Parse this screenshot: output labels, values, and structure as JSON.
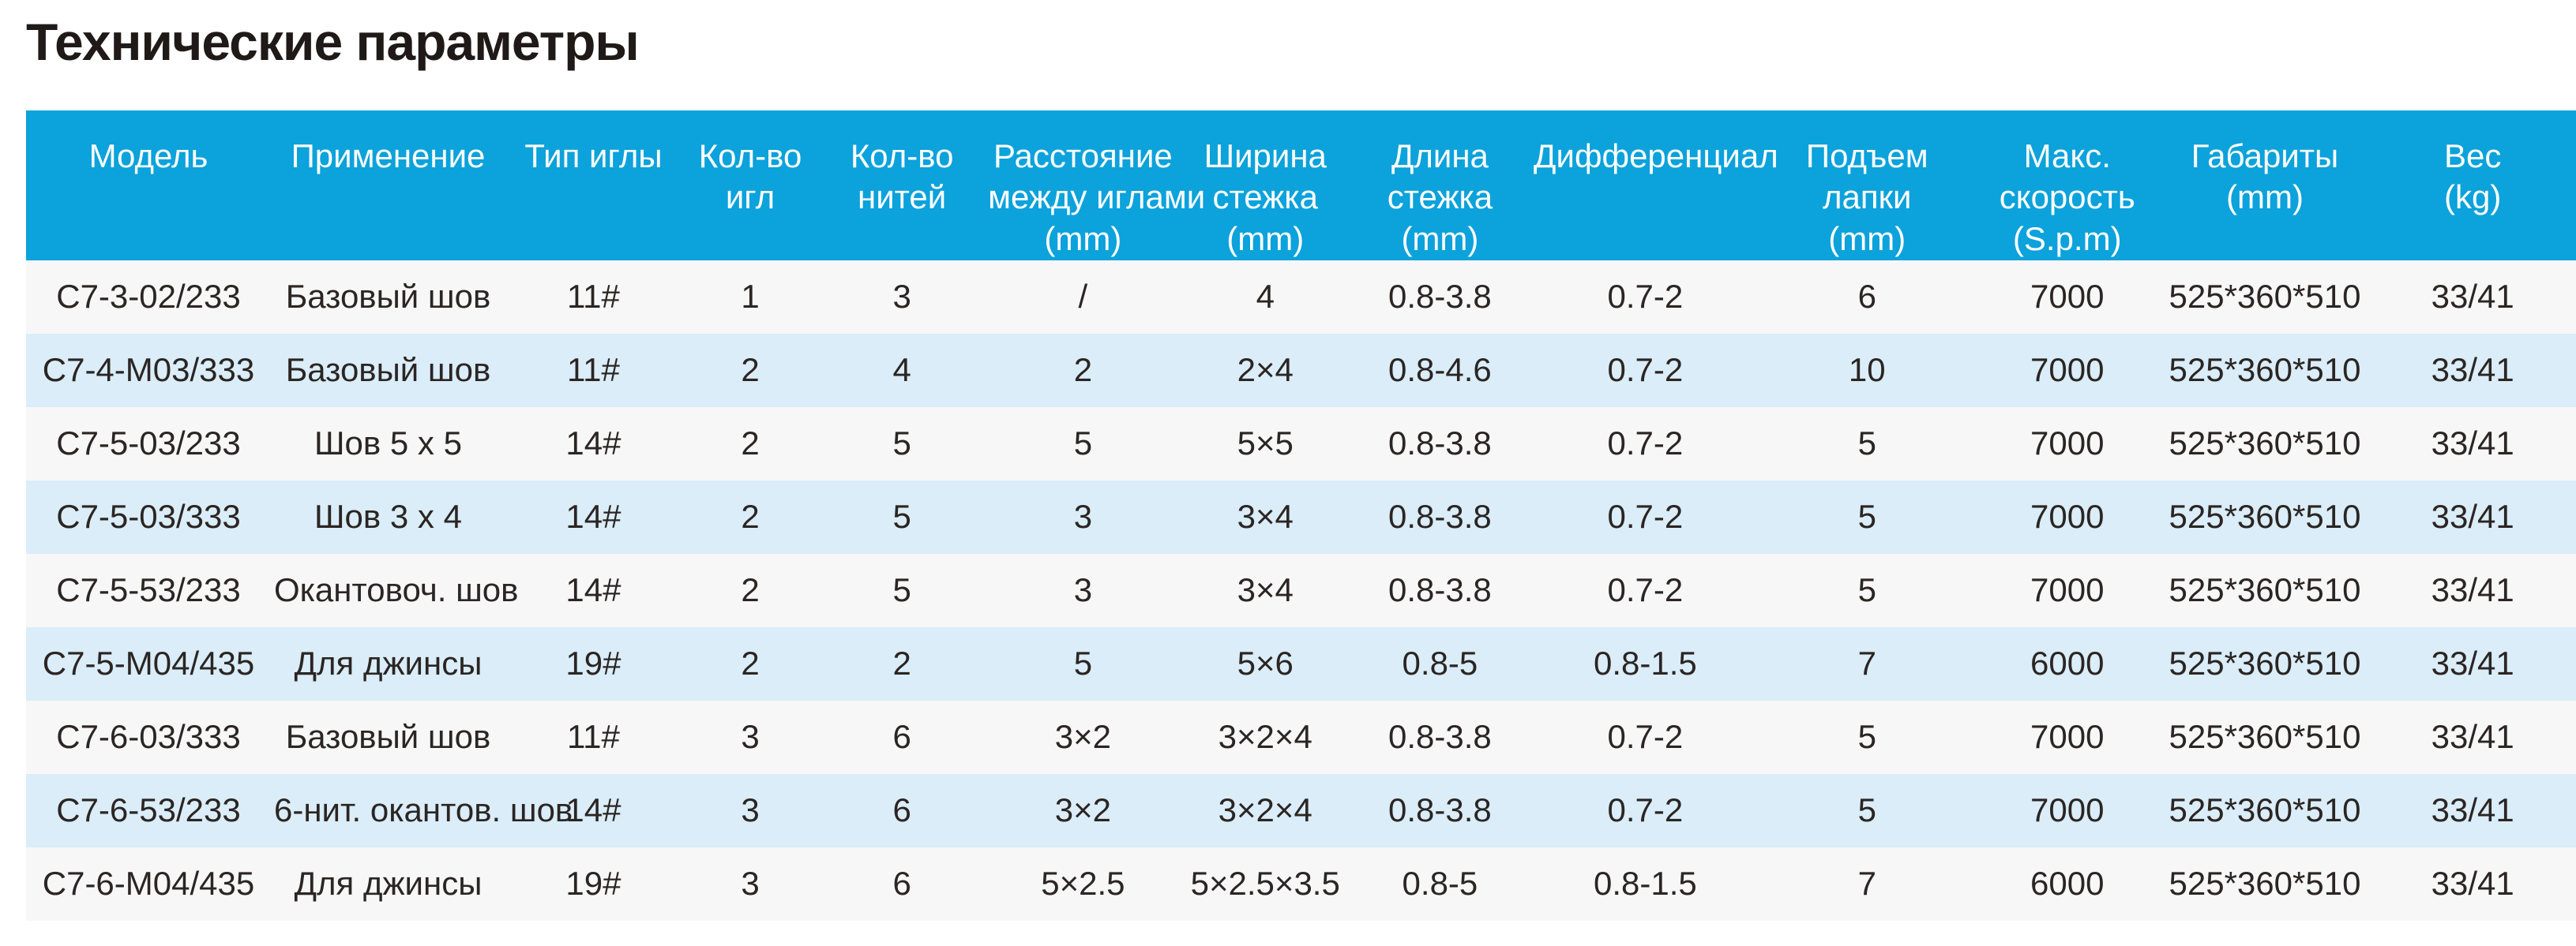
{
  "page": {
    "title": "Технические параметры"
  },
  "colors": {
    "header_background": "#0ca2db",
    "header_text": "#ffffff",
    "row_light": "#f7f7f8",
    "row_blue": "#daedf8",
    "body_text": "#2b2523",
    "title_text": "#1f1a17"
  },
  "table": {
    "columns": [
      {
        "id": "model",
        "label": "Модель"
      },
      {
        "id": "application",
        "label": "Применение"
      },
      {
        "id": "needle_type",
        "label": "Тип иглы"
      },
      {
        "id": "needles",
        "label": "Кол-во\nигл"
      },
      {
        "id": "threads",
        "label": "Кол-во\nнитей"
      },
      {
        "id": "needle_gauge",
        "label": "Расстояние\nмежду иглами\n(mm)"
      },
      {
        "id": "stitch_width",
        "label": "Ширина\nстежка\n(mm)"
      },
      {
        "id": "stitch_length",
        "label": "Длина\nстежка\n(mm)"
      },
      {
        "id": "differential",
        "label": "Дифференциал"
      },
      {
        "id": "foot_lift",
        "label": "Подъем\nлапки\n(mm)"
      },
      {
        "id": "max_speed",
        "label": "Макс.\nскорость\n(S.p.m)"
      },
      {
        "id": "dimensions",
        "label": "Габариты\n(mm)"
      },
      {
        "id": "weight",
        "label": "Вес\n(kg)"
      }
    ],
    "rows": [
      [
        "C7-3-02/233",
        "Базовый шов",
        "11#",
        "1",
        "3",
        "/",
        "4",
        "0.8-3.8",
        "0.7-2",
        "6",
        "7000",
        "525*360*510",
        "33/41"
      ],
      [
        "C7-4-M03/333",
        "Базовый шов",
        "11#",
        "2",
        "4",
        "2",
        "2×4",
        "0.8-4.6",
        "0.7-2",
        "10",
        "7000",
        "525*360*510",
        "33/41"
      ],
      [
        "C7-5-03/233",
        "Шов 5 x 5",
        "14#",
        "2",
        "5",
        "5",
        "5×5",
        "0.8-3.8",
        "0.7-2",
        "5",
        "7000",
        "525*360*510",
        "33/41"
      ],
      [
        "C7-5-03/333",
        "Шов 3 x 4",
        "14#",
        "2",
        "5",
        "3",
        "3×4",
        "0.8-3.8",
        "0.7-2",
        "5",
        "7000",
        "525*360*510",
        "33/41"
      ],
      [
        "C7-5-53/233",
        "Окантовоч. шов",
        "14#",
        "2",
        "5",
        "3",
        "3×4",
        "0.8-3.8",
        "0.7-2",
        "5",
        "7000",
        "525*360*510",
        "33/41"
      ],
      [
        "C7-5-M04/435",
        "Для джинсы",
        "19#",
        "2",
        "2",
        "5",
        "5×6",
        "0.8-5",
        "0.8-1.5",
        "7",
        "6000",
        "525*360*510",
        "33/41"
      ],
      [
        "C7-6-03/333",
        "Базовый шов",
        "11#",
        "3",
        "6",
        "3×2",
        "3×2×4",
        "0.8-3.8",
        "0.7-2",
        "5",
        "7000",
        "525*360*510",
        "33/41"
      ],
      [
        "C7-6-53/233",
        "6-нит. окантов. шов",
        "14#",
        "3",
        "6",
        "3×2",
        "3×2×4",
        "0.8-3.8",
        "0.7-2",
        "5",
        "7000",
        "525*360*510",
        "33/41"
      ],
      [
        "C7-6-M04/435",
        "Для джинсы",
        "19#",
        "3",
        "6",
        "5×2.5",
        "5×2.5×3.5",
        "0.8-5",
        "0.8-1.5",
        "7",
        "6000",
        "525*360*510",
        "33/41"
      ]
    ]
  }
}
